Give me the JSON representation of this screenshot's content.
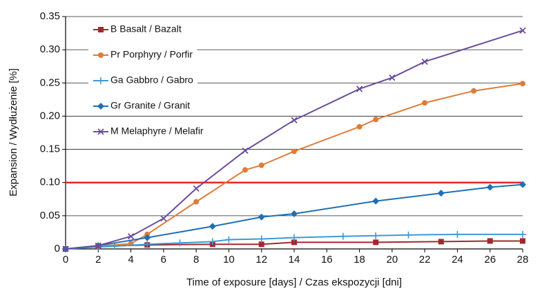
{
  "chart_data": {
    "type": "line",
    "xlabel": "Time of exposure [days] / Czas ekspozycji [dni]",
    "ylabel": "Expansion / Wydłużenie [%]",
    "xlim": [
      0,
      28
    ],
    "xticks": [
      0,
      2,
      4,
      6,
      8,
      10,
      12,
      14,
      16,
      18,
      20,
      22,
      24,
      26,
      28
    ],
    "ylim": [
      0,
      0.35
    ],
    "yticks": [
      0,
      0.05,
      {
        "value": 0.1,
        "label": "0.10"
      },
      0.15,
      {
        "value": 0.2,
        "label": "0.20"
      },
      0.25,
      {
        "value": 0.3,
        "label": "0.30"
      },
      0.35
    ],
    "grid": true,
    "threshold": {
      "value": 0.1,
      "color": "#e8262a"
    },
    "legend": "upper left",
    "series": [
      {
        "name": "B   Basalt / Bazalt",
        "color": "#a3282c",
        "marker": "square",
        "x": [
          0,
          2,
          5,
          9,
          12,
          14,
          19,
          23,
          26,
          28
        ],
        "values": [
          0,
          0.004,
          0.006,
          0.007,
          0.007,
          0.01,
          0.01,
          0.011,
          0.012,
          0.012
        ]
      },
      {
        "name": "Pr   Porphyry / Porfir",
        "color": "#e07b39",
        "marker": "circle",
        "x": [
          0,
          2,
          4,
          5,
          8,
          11,
          12,
          14,
          18,
          19,
          22,
          25,
          28
        ],
        "values": [
          0,
          0.004,
          0.008,
          0.022,
          0.071,
          0.119,
          0.126,
          0.147,
          0.184,
          0.195,
          0.22,
          0.238,
          0.249
        ]
      },
      {
        "name": "Ga  Gabbro / Gabro",
        "color": "#3a9ad9",
        "marker": "plus",
        "x": [
          0,
          2,
          3,
          5,
          7,
          9,
          10,
          12,
          14,
          17,
          19,
          21,
          24,
          28
        ],
        "values": [
          0,
          0.003,
          0.004,
          0.007,
          0.009,
          0.011,
          0.014,
          0.015,
          0.017,
          0.019,
          0.02,
          0.021,
          0.022,
          0.022
        ]
      },
      {
        "name": "Gr  Granite / Granit",
        "color": "#1f6fb5",
        "marker": "diamond",
        "x": [
          0,
          2,
          5,
          9,
          12,
          14,
          19,
          23,
          26,
          28
        ],
        "values": [
          0,
          0.005,
          0.017,
          0.034,
          0.048,
          0.053,
          0.072,
          0.084,
          0.093,
          0.097
        ]
      },
      {
        "name": "M   Melaphyre / Melafir",
        "color": "#6a4c9c",
        "marker": "x",
        "x": [
          0,
          2,
          4,
          6,
          8,
          11,
          14,
          18,
          20,
          22,
          28
        ],
        "values": [
          0,
          0.005,
          0.019,
          0.046,
          0.091,
          0.148,
          0.194,
          0.241,
          0.258,
          0.282,
          0.329
        ]
      }
    ]
  }
}
